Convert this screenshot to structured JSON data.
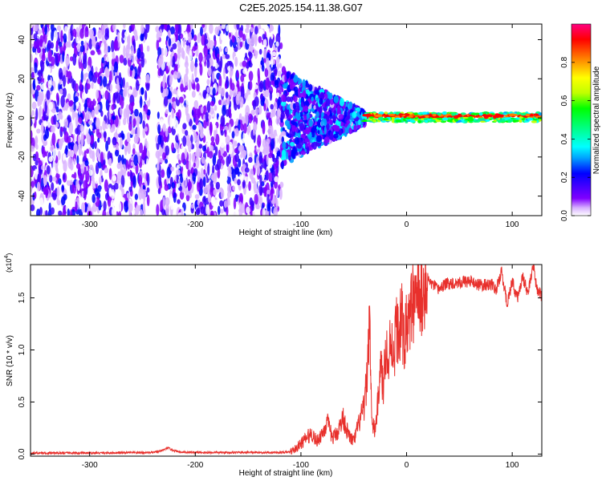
{
  "title": "C2E5.2025.154.11.38.G07",
  "chart_data": [
    {
      "type": "heatmap",
      "xlabel": "Height of straight line (km)",
      "ylabel": "Frequency (Hz)",
      "xlim": [
        -356,
        128
      ],
      "ylim": [
        -50,
        48
      ],
      "xticks": [
        -300,
        -200,
        -100,
        0,
        100
      ],
      "yticks": [
        -40,
        -20,
        0,
        20,
        40
      ],
      "colorbar": {
        "label": "Normalized spectral amplitude",
        "range": [
          0.0,
          1.0
        ],
        "ticks": [
          0.0,
          0.2,
          0.4,
          0.6,
          0.8
        ],
        "tick_labels": [
          "0.0",
          "0.2",
          "0.4",
          "0.6",
          "0.8"
        ],
        "colormap": [
          "#ffffff",
          "#d9b3ff",
          "#8000ff",
          "#3c00ff",
          "#0000ff",
          "#00a0ff",
          "#00ffff",
          "#00ff80",
          "#00ff00",
          "#c0ff00",
          "#ffff00",
          "#ff8000",
          "#ff0000",
          "#ff0080"
        ]
      },
      "regions": [
        {
          "x_range": [
            -356,
            -118
          ],
          "freq_range": [
            -50,
            48
          ],
          "amplitude": [
            0.05,
            0.25
          ],
          "description_type": "scattered"
        },
        {
          "x_range": [
            -118,
            -40
          ],
          "freq_range": [
            -20,
            20
          ],
          "amplitude": [
            0.1,
            0.45
          ],
          "description_type": "converging"
        },
        {
          "x_range": [
            -40,
            128
          ],
          "freq_range": [
            -2,
            3
          ],
          "amplitude": [
            0.4,
            0.95
          ],
          "description_type": "line"
        }
      ],
      "grid": false
    },
    {
      "type": "line",
      "xlabel": "Height of straight line (km)",
      "ylabel": "SNR (10 * v/v)",
      "yscale_label": "(x10",
      "yscale_exp": "4",
      "yscale_close": ")",
      "xlim": [
        -356,
        128
      ],
      "ylim": [
        -0.02,
        1.82
      ],
      "xticks": [
        -300,
        -200,
        -100,
        0,
        100
      ],
      "yticks": [
        0.0,
        0.5,
        1.0,
        1.5
      ],
      "ytick_labels": [
        "0.0",
        "0.5",
        "1.0",
        "1.5"
      ],
      "color": "#e8302c",
      "series": [
        {
          "x": [
            -356,
            -300,
            -240,
            -232,
            -226,
            -222,
            -215,
            -200,
            -150,
            -120,
            -110,
            -104,
            -100,
            -95,
            -90,
            -85,
            -80,
            -75,
            -70,
            -65,
            -60,
            -55,
            -50,
            -45,
            -40,
            -37,
            -35,
            -33,
            -30,
            -27,
            -25,
            -22,
            -20,
            -17,
            -15,
            -12,
            -10,
            -7,
            -5,
            -2,
            0,
            3,
            5,
            8,
            10,
            13,
            15,
            18,
            20,
            25,
            30,
            35,
            40,
            50,
            60,
            70,
            80,
            85,
            90,
            95,
            100,
            105,
            110,
            115,
            120,
            123,
            126,
            128
          ],
          "y": [
            0.01,
            0.01,
            0.015,
            0.03,
            0.06,
            0.04,
            0.02,
            0.015,
            0.015,
            0.015,
            0.02,
            0.06,
            0.1,
            0.15,
            0.2,
            0.12,
            0.2,
            0.3,
            0.15,
            0.22,
            0.35,
            0.18,
            0.12,
            0.3,
            0.45,
            0.8,
            1.4,
            0.3,
            0.22,
            0.5,
            0.9,
            0.6,
            1.1,
            0.8,
            1.2,
            0.9,
            1.25,
            1.1,
            1.35,
            1.0,
            1.3,
            1.2,
            1.5,
            1.35,
            1.6,
            1.45,
            1.55,
            1.6,
            1.68,
            1.62,
            1.58,
            1.62,
            1.64,
            1.65,
            1.66,
            1.62,
            1.63,
            1.58,
            1.75,
            1.45,
            1.65,
            1.5,
            1.7,
            1.55,
            1.8,
            1.6,
            1.55,
            1.52
          ]
        }
      ],
      "grid": false
    }
  ]
}
